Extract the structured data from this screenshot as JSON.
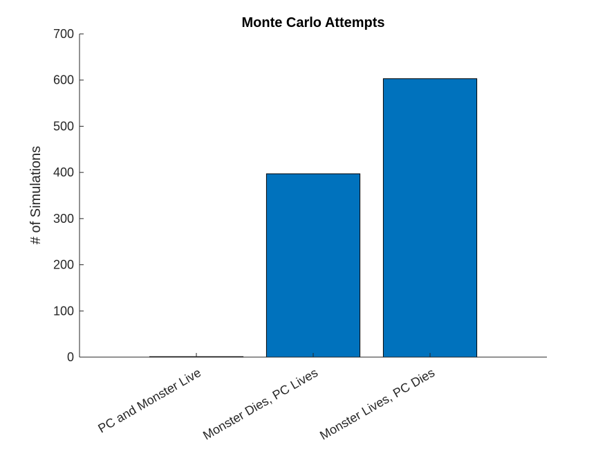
{
  "chart_data": {
    "type": "bar",
    "title": "Monte Carlo Attempts",
    "xlabel": "",
    "ylabel": "# of Simulations",
    "categories": [
      "PC and Monster Live",
      "Monster Dies, PC Lives",
      "Monster Lives, PC Dies"
    ],
    "values": [
      1,
      397,
      603
    ],
    "ylim": [
      0,
      700
    ],
    "yticks": [
      0,
      100,
      200,
      300,
      400,
      500,
      600,
      700
    ],
    "bar_color": "#0072BD",
    "edge_color": "#000000",
    "grid": false,
    "legend": "none"
  }
}
